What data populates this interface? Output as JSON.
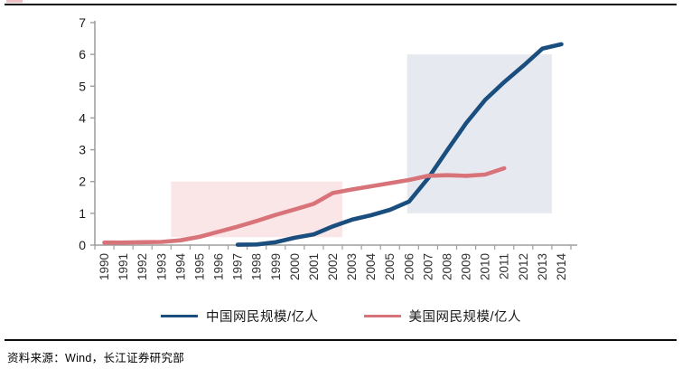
{
  "page": {
    "source_text": "资料来源：Wind，长江证券研究部",
    "rule_color": "#0d0d0d",
    "accent_color": "#d9737a"
  },
  "chart_data": {
    "type": "line",
    "title": "",
    "xlabel": "",
    "ylabel": "",
    "categories": [
      "1990",
      "1991",
      "1992",
      "1993",
      "1994",
      "1995",
      "1996",
      "1997",
      "1998",
      "1999",
      "2000",
      "2001",
      "2002",
      "2003",
      "2004",
      "2005",
      "2006",
      "2007",
      "2008",
      "2009",
      "2010",
      "2011",
      "2012",
      "2013",
      "2014"
    ],
    "ylim": [
      0,
      7
    ],
    "yticks": [
      0,
      1,
      2,
      3,
      4,
      5,
      6,
      7
    ],
    "grid": false,
    "legend_position": "bottom",
    "axis_color": "#9e9e9e",
    "tick_label_color": "#333333",
    "series": [
      {
        "name": "中国网民规模/亿人",
        "color": "#1a4e7e",
        "start_year": 1997,
        "values": [
          0.01,
          0.02,
          0.09,
          0.23,
          0.34,
          0.59,
          0.8,
          0.94,
          1.11,
          1.37,
          2.1,
          2.98,
          3.84,
          4.57,
          5.13,
          5.64,
          6.18,
          6.32
        ]
      },
      {
        "name": "美国网民规模/亿人",
        "color": "#d9737a",
        "start_year": 1990,
        "values": [
          0.08,
          0.08,
          0.09,
          0.1,
          0.15,
          0.26,
          0.42,
          0.58,
          0.76,
          0.95,
          1.12,
          1.3,
          1.64,
          1.75,
          1.85,
          1.95,
          2.05,
          2.18,
          2.2,
          2.18,
          2.22,
          2.42
        ]
      }
    ],
    "annotations": [
      {
        "type": "rect",
        "x0": 1993.5,
        "x1": 2002.5,
        "y0": 0.25,
        "y1": 2.0,
        "fill": "#fbe6e7"
      },
      {
        "type": "rect",
        "x0": 2005.9,
        "x1": 2013.5,
        "y0": 1.0,
        "y1": 6.0,
        "fill": "#e6e9ef"
      }
    ]
  }
}
